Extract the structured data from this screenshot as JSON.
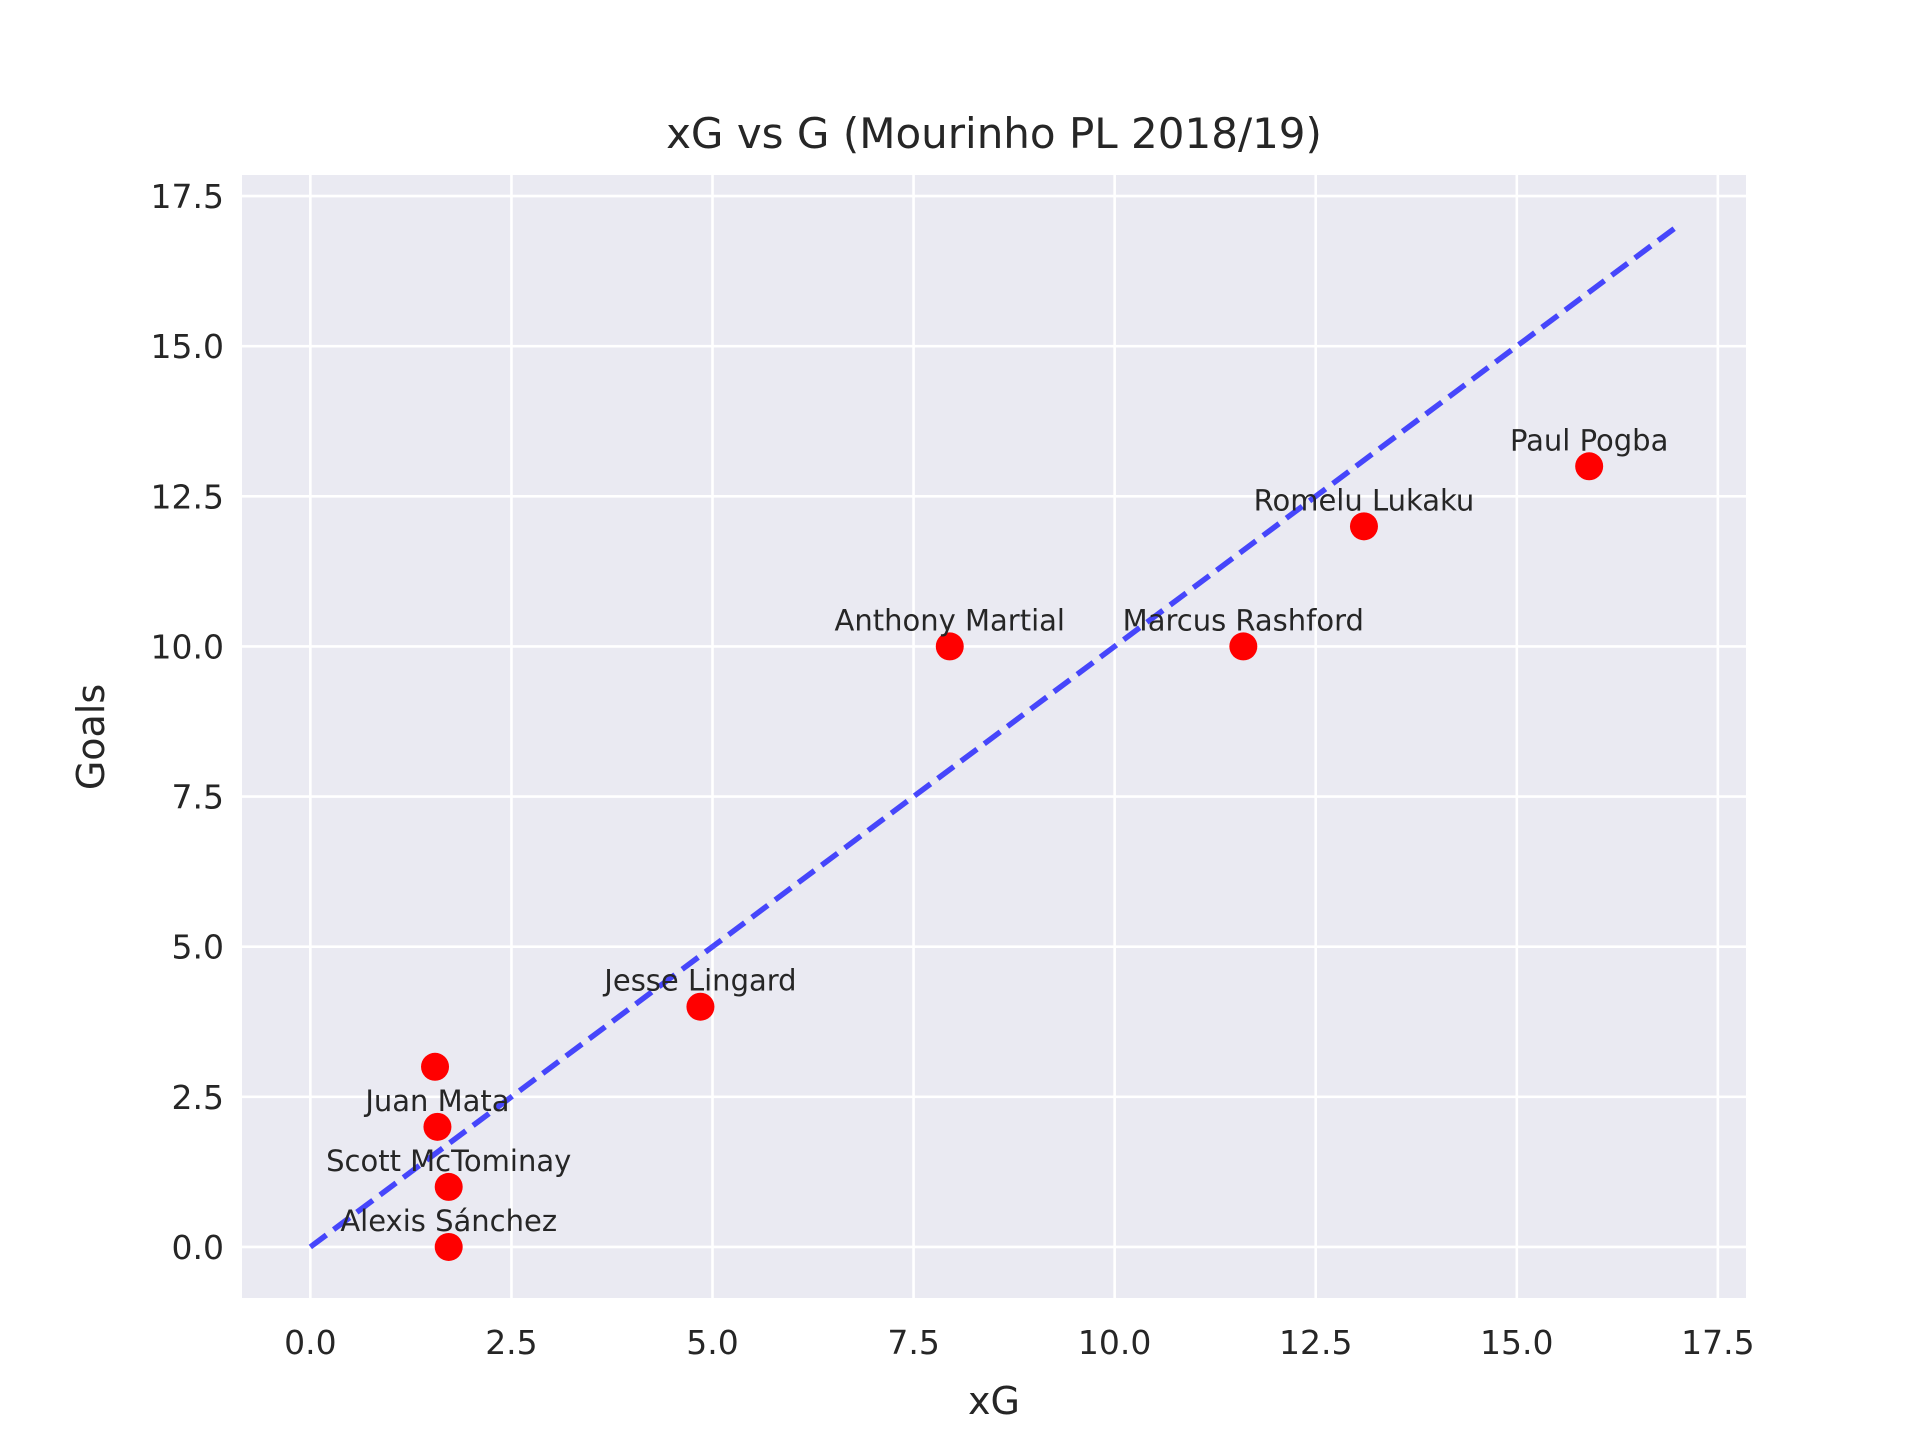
{
  "chart_data": {
    "type": "scatter",
    "title": "xG vs G (Mourinho PL 2018/19)",
    "xlabel": "xG",
    "ylabel": "Goals",
    "xlim": [
      -0.85,
      17.85
    ],
    "ylim": [
      -0.85,
      17.85
    ],
    "xticks": [
      "0.0",
      "2.5",
      "5.0",
      "7.5",
      "10.0",
      "12.5",
      "15.0",
      "17.5"
    ],
    "yticks": [
      "0.0",
      "2.5",
      "5.0",
      "7.5",
      "10.0",
      "12.5",
      "15.0",
      "17.5"
    ],
    "grid": true,
    "background_color": "#eaeaf2",
    "grid_color": "#ffffff",
    "point_color": "#ff0000",
    "reference_line": {
      "style": "dashed",
      "color": "#0000ff",
      "from": [
        0,
        0
      ],
      "to": [
        17,
        17
      ]
    },
    "points": [
      {
        "name": "Paul Pogba",
        "x": 15.9,
        "y": 13
      },
      {
        "name": "Romelu Lukaku",
        "x": 13.1,
        "y": 12
      },
      {
        "name": "Anthony Martial",
        "x": 7.95,
        "y": 10
      },
      {
        "name": "Marcus Rashford",
        "x": 11.6,
        "y": 10
      },
      {
        "name": "Jesse Lingard",
        "x": 4.85,
        "y": 4
      },
      {
        "name": "",
        "x": 1.55,
        "y": 3
      },
      {
        "name": "Juan Mata",
        "x": 1.58,
        "y": 2
      },
      {
        "name": "Scott McTominay",
        "x": 1.72,
        "y": 1
      },
      {
        "name": "Alexis Sánchez",
        "x": 1.72,
        "y": 0
      }
    ]
  }
}
